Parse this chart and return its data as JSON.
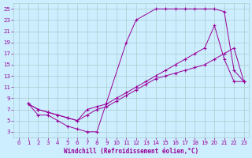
{
  "background_color": "#cceeff",
  "grid_color": "#aacccc",
  "line_color": "#990099",
  "xlabel": "Windchill (Refroidissement éolien,°C)",
  "xlim": [
    -0.5,
    23.5
  ],
  "ylim": [
    2,
    26
  ],
  "xticks": [
    0,
    1,
    2,
    3,
    4,
    5,
    6,
    7,
    8,
    9,
    10,
    11,
    12,
    13,
    14,
    15,
    16,
    17,
    18,
    19,
    20,
    21,
    22,
    23
  ],
  "yticks": [
    3,
    5,
    7,
    9,
    11,
    13,
    15,
    17,
    19,
    21,
    23,
    25
  ],
  "line1_x": [
    1,
    2,
    3,
    4,
    5,
    6,
    7,
    8,
    11,
    12,
    14,
    15,
    16,
    17,
    18,
    19,
    20,
    21,
    22,
    23
  ],
  "line1_y": [
    8,
    6,
    6,
    5,
    4,
    3.5,
    3,
    3,
    19,
    23,
    25,
    25,
    25,
    25,
    25,
    25,
    25,
    24.5,
    14,
    12
  ],
  "line2_x": [
    1,
    2,
    3,
    4,
    5,
    6,
    7,
    8,
    9,
    10,
    11,
    12,
    13,
    14,
    15,
    16,
    17,
    18,
    19,
    20,
    21,
    22,
    23
  ],
  "line2_y": [
    8,
    7,
    6.5,
    6,
    5.5,
    5,
    7,
    7.5,
    8,
    9,
    10,
    11,
    12,
    13,
    14,
    15,
    16,
    17,
    18,
    22,
    16,
    12,
    12
  ],
  "line3_x": [
    1,
    2,
    3,
    4,
    5,
    6,
    7,
    8,
    9,
    10,
    11,
    12,
    13,
    14,
    15,
    16,
    17,
    18,
    19,
    20,
    21,
    22,
    23
  ],
  "line3_y": [
    8,
    7,
    6.5,
    6,
    5.5,
    5,
    6,
    7,
    7.5,
    8.5,
    9.5,
    10.5,
    11.5,
    12.5,
    13,
    13.5,
    14,
    14.5,
    15,
    16,
    17,
    18,
    12
  ]
}
